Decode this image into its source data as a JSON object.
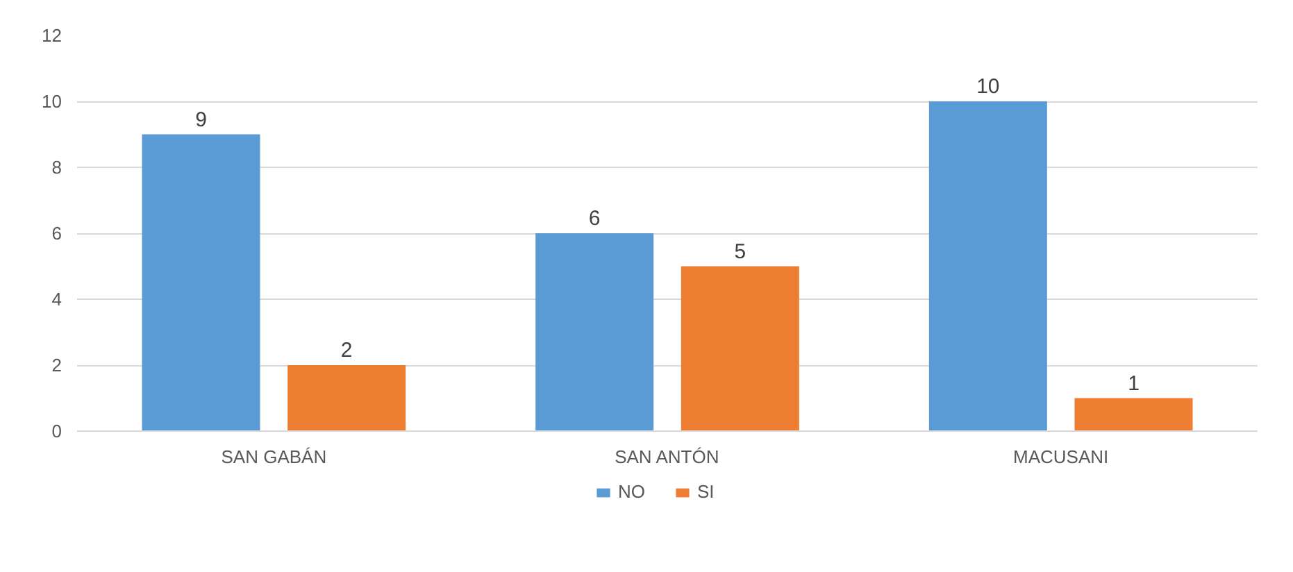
{
  "chart_data": {
    "type": "bar",
    "categories": [
      "SAN GABÁN",
      "SAN ANTÓN",
      "MACUSANI"
    ],
    "series": [
      {
        "name": "NO",
        "color": "#5b9bd5",
        "values": [
          9,
          6,
          10
        ]
      },
      {
        "name": "SI",
        "color": "#ed7d31",
        "values": [
          2,
          5,
          1
        ]
      }
    ],
    "ylim": [
      0,
      12
    ],
    "yticks": [
      0,
      2,
      4,
      6,
      8,
      10,
      12
    ],
    "grid": "y",
    "legend": "bottom",
    "data_labels": true
  }
}
